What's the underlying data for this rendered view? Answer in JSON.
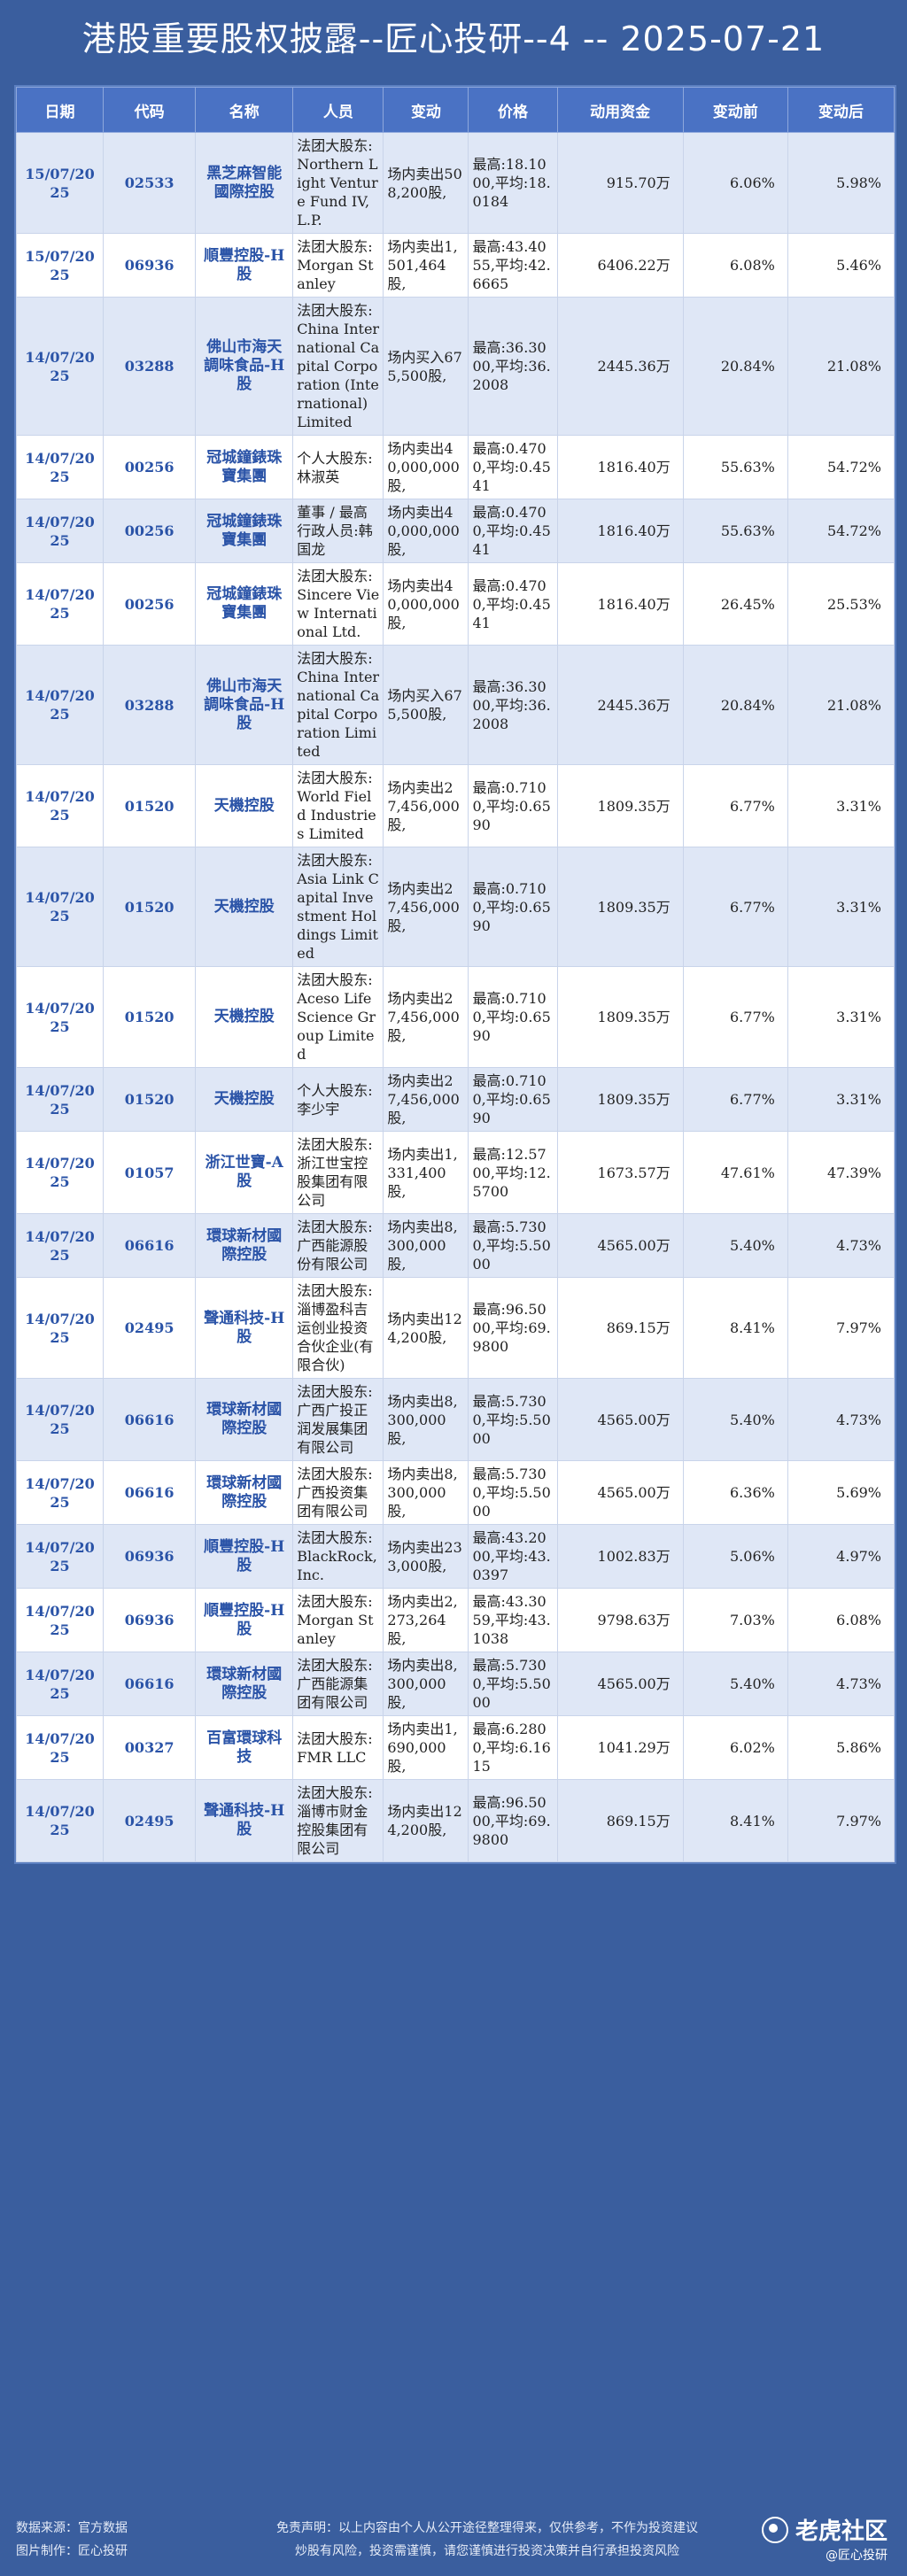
{
  "title": "港股重要股权披露--匠心投研--4 -- 2025-07-21",
  "headers": [
    "日期",
    "代码",
    "名称",
    "人员",
    "变动",
    "价格",
    "动用资金",
    "变动前",
    "变动后"
  ],
  "rows": [
    {
      "date": "15/07/2025",
      "code": "02533",
      "name": "黑芝麻智能國際控股",
      "person": "法团大股东:Northern Light Venture Fund IV, L.P.",
      "change": "场内卖出508,200股,",
      "price": "最高:18.1000,平均:18.0184",
      "funds": "915.70万",
      "before": "6.06%",
      "after": "5.98%"
    },
    {
      "date": "15/07/2025",
      "code": "06936",
      "name": "順豐控股-H股",
      "person": "法团大股东:Morgan Stanley",
      "change": "场内卖出1,501,464股,",
      "price": "最高:43.4055,平均:42.6665",
      "funds": "6406.22万",
      "before": "6.08%",
      "after": "5.46%"
    },
    {
      "date": "14/07/2025",
      "code": "03288",
      "name": "佛山市海天調味食品-H股",
      "person": "法团大股东:China International Capital Corporation (International) Limited",
      "change": "场内买入675,500股,",
      "price": "最高:36.3000,平均:36.2008",
      "funds": "2445.36万",
      "before": "20.84%",
      "after": "21.08%"
    },
    {
      "date": "14/07/2025",
      "code": "00256",
      "name": "冠城鐘錶珠寶集團",
      "person": "个人大股东:林淑英",
      "change": "场内卖出40,000,000股,",
      "price": "最高:0.4700,平均:0.4541",
      "funds": "1816.40万",
      "before": "55.63%",
      "after": "54.72%"
    },
    {
      "date": "14/07/2025",
      "code": "00256",
      "name": "冠城鐘錶珠寶集團",
      "person": "董事 / 最高行政人员:韩国龙",
      "change": "场内卖出40,000,000股,",
      "price": "最高:0.4700,平均:0.4541",
      "funds": "1816.40万",
      "before": "55.63%",
      "after": "54.72%"
    },
    {
      "date": "14/07/2025",
      "code": "00256",
      "name": "冠城鐘錶珠寶集團",
      "person": "法团大股东:Sincere View International Ltd.",
      "change": "场内卖出40,000,000股,",
      "price": "最高:0.4700,平均:0.4541",
      "funds": "1816.40万",
      "before": "26.45%",
      "after": "25.53%"
    },
    {
      "date": "14/07/2025",
      "code": "03288",
      "name": "佛山市海天調味食品-H股",
      "person": "法团大股东:China International Capital Corporation Limited",
      "change": "场内买入675,500股,",
      "price": "最高:36.3000,平均:36.2008",
      "funds": "2445.36万",
      "before": "20.84%",
      "after": "21.08%"
    },
    {
      "date": "14/07/2025",
      "code": "01520",
      "name": "天機控股",
      "person": "法团大股东:World Field Industries Limited",
      "change": "场内卖出27,456,000股,",
      "price": "最高:0.7100,平均:0.6590",
      "funds": "1809.35万",
      "before": "6.77%",
      "after": "3.31%"
    },
    {
      "date": "14/07/2025",
      "code": "01520",
      "name": "天機控股",
      "person": "法团大股东:Asia Link Capital Investment Holdings Limited",
      "change": "场内卖出27,456,000股,",
      "price": "最高:0.7100,平均:0.6590",
      "funds": "1809.35万",
      "before": "6.77%",
      "after": "3.31%"
    },
    {
      "date": "14/07/2025",
      "code": "01520",
      "name": "天機控股",
      "person": "法团大股东:Aceso Life Science Group Limited",
      "change": "场内卖出27,456,000股,",
      "price": "最高:0.7100,平均:0.6590",
      "funds": "1809.35万",
      "before": "6.77%",
      "after": "3.31%"
    },
    {
      "date": "14/07/2025",
      "code": "01520",
      "name": "天機控股",
      "person": "个人大股东:李少宇",
      "change": "场内卖出27,456,000股,",
      "price": "最高:0.7100,平均:0.6590",
      "funds": "1809.35万",
      "before": "6.77%",
      "after": "3.31%"
    },
    {
      "date": "14/07/2025",
      "code": "01057",
      "name": "浙江世寶-A股",
      "person": "法团大股东:浙江世宝控股集团有限公司",
      "change": "场内卖出1,331,400股,",
      "price": "最高:12.5700,平均:12.5700",
      "funds": "1673.57万",
      "before": "47.61%",
      "after": "47.39%"
    },
    {
      "date": "14/07/2025",
      "code": "06616",
      "name": "環球新材國際控股",
      "person": "法团大股东:广西能源股份有限公司",
      "change": "场内卖出8,300,000股,",
      "price": "最高:5.7300,平均:5.5000",
      "funds": "4565.00万",
      "before": "5.40%",
      "after": "4.73%"
    },
    {
      "date": "14/07/2025",
      "code": "02495",
      "name": "聲通科技-H股",
      "person": "法团大股东:淄博盈科吉运创业投资合伙企业(有限合伙)",
      "change": "场内卖出124,200股,",
      "price": "最高:96.5000,平均:69.9800",
      "funds": "869.15万",
      "before": "8.41%",
      "after": "7.97%"
    },
    {
      "date": "14/07/2025",
      "code": "06616",
      "name": "環球新材國際控股",
      "person": "法团大股东:广西广投正润发展集团有限公司",
      "change": "场内卖出8,300,000股,",
      "price": "最高:5.7300,平均:5.5000",
      "funds": "4565.00万",
      "before": "5.40%",
      "after": "4.73%"
    },
    {
      "date": "14/07/2025",
      "code": "06616",
      "name": "環球新材國際控股",
      "person": "法团大股东:广西投资集团有限公司",
      "change": "场内卖出8,300,000股,",
      "price": "最高:5.7300,平均:5.5000",
      "funds": "4565.00万",
      "before": "6.36%",
      "after": "5.69%"
    },
    {
      "date": "14/07/2025",
      "code": "06936",
      "name": "順豐控股-H股",
      "person": "法团大股东:BlackRock, Inc.",
      "change": "场内卖出233,000股,",
      "price": "最高:43.2000,平均:43.0397",
      "funds": "1002.83万",
      "before": "5.06%",
      "after": "4.97%"
    },
    {
      "date": "14/07/2025",
      "code": "06936",
      "name": "順豐控股-H股",
      "person": "法团大股东:Morgan Stanley",
      "change": "场内卖出2,273,264股,",
      "price": "最高:43.3059,平均:43.1038",
      "funds": "9798.63万",
      "before": "7.03%",
      "after": "6.08%"
    },
    {
      "date": "14/07/2025",
      "code": "06616",
      "name": "環球新材國際控股",
      "person": "法团大股东:广西能源集团有限公司",
      "change": "场内卖出8,300,000股,",
      "price": "最高:5.7300,平均:5.5000",
      "funds": "4565.00万",
      "before": "5.40%",
      "after": "4.73%"
    },
    {
      "date": "14/07/2025",
      "code": "00327",
      "name": "百富環球科技",
      "person": "法团大股东:FMR LLC",
      "change": "场内卖出1,690,000股,",
      "price": "最高:6.2800,平均:6.1615",
      "funds": "1041.29万",
      "before": "6.02%",
      "after": "5.86%"
    },
    {
      "date": "14/07/2025",
      "code": "02495",
      "name": "聲通科技-H股",
      "person": "法团大股东:淄博市财金控股集团有限公司",
      "change": "场内卖出124,200股,",
      "price": "最高:96.5000,平均:69.9800",
      "funds": "869.15万",
      "before": "8.41%",
      "after": "7.97%"
    }
  ],
  "footer": {
    "source_line1": "数据来源：官方数据",
    "source_line2": "图片制作：匠心投研",
    "disclaimer_line1": "免责声明：以上内容由个人从公开途径整理得来，仅供参考，不作为投资建议",
    "disclaimer_line2": "炒股有风险，投资需谨慎，请您谨慎进行投资决策并自行承担投资风险",
    "logo_text": "老虎社区",
    "logo_sub": "@匠心投研"
  },
  "colors": {
    "background": "#3a5e9e",
    "header": "#4a72c4",
    "row_odd": "#dfe7f6",
    "row_even": "#ffffff",
    "link": "#2a53a7"
  }
}
